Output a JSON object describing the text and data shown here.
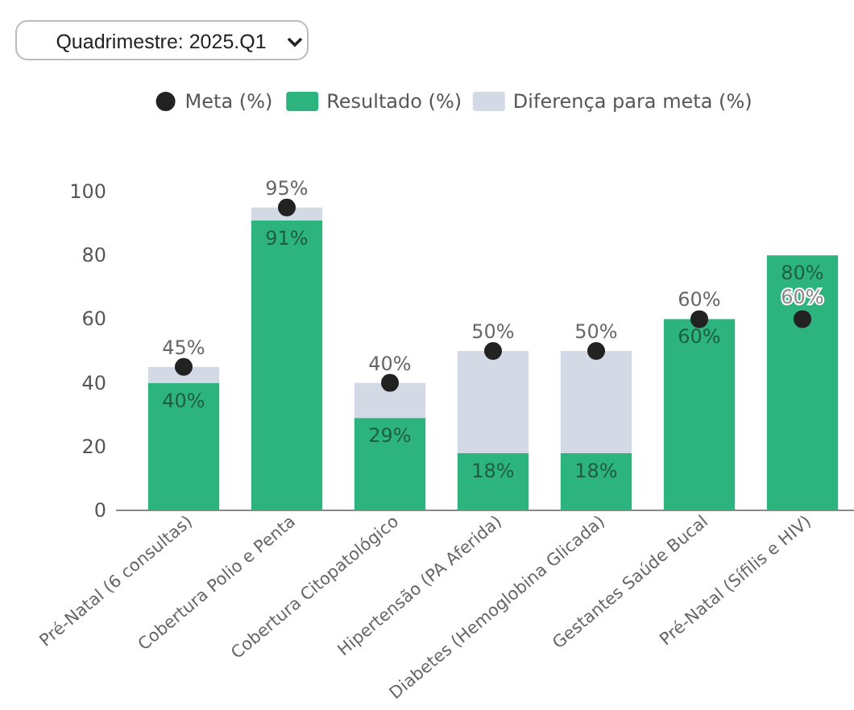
{
  "chart_data": {
    "type": "bar",
    "stacked": true,
    "categories": [
      "Pré-Natal (6 consultas)",
      "Cobertura Polio e Penta",
      "Cobertura Citopatológico",
      "Hipertensão (PA Aferida)",
      "Diabetes (Hemoglobina Glicada)",
      "Gestantes Saúde Bucal",
      "Pré-Natal (Sífilis e HIV)"
    ],
    "series": [
      {
        "name": "Resultado (%)",
        "color": "#2db37e",
        "values": [
          40,
          91,
          29,
          18,
          18,
          60,
          80
        ],
        "value_labels": [
          "40%",
          "91%",
          "29%",
          "18%",
          "18%",
          "60%",
          "80%"
        ]
      },
      {
        "name": "Diferença para meta (%)",
        "color": "#d4d9e6",
        "values": [
          5,
          4,
          11,
          32,
          32,
          0,
          0
        ]
      },
      {
        "name": "Meta (%)",
        "type": "scatter",
        "marker": "circle",
        "color": "#222222",
        "values": [
          45,
          95,
          40,
          50,
          50,
          60,
          60
        ],
        "value_labels": [
          "45%",
          "95%",
          "40%",
          "50%",
          "50%",
          "60%",
          "60%"
        ]
      }
    ],
    "ylim": [
      0,
      100
    ],
    "yticks": [
      0,
      20,
      40,
      60,
      80,
      100
    ],
    "grid": false,
    "legend": "top",
    "annotations": [
      "Quadrimestre: 2025.Q1"
    ]
  }
}
